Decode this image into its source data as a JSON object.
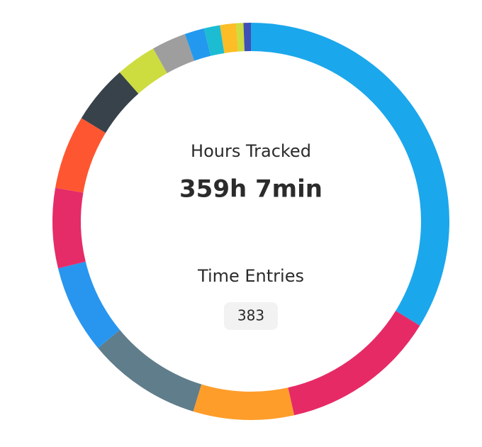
{
  "chart_data": {
    "type": "donut",
    "center_label": "Hours Tracked",
    "center_value": "359h 7min",
    "entries_label": "Time Entries",
    "entries_value": "383",
    "values": [
      33.8,
      12.7,
      8.2,
      9.3,
      7.2,
      6.5,
      6.0,
      4.8,
      3.3,
      2.8,
      1.6,
      1.3,
      1.3,
      0.6,
      0.6
    ],
    "colors": [
      "#1ba7ec",
      "#e62a66",
      "#ff9d2a",
      "#607d8b",
      "#2896ef",
      "#e52c68",
      "#fe5631",
      "#37424b",
      "#cddc3f",
      "#9e9e9e",
      "#2299ee",
      "#1cbcd2",
      "#fcbd26",
      "#cddc3f",
      "#3f51b5"
    ]
  }
}
